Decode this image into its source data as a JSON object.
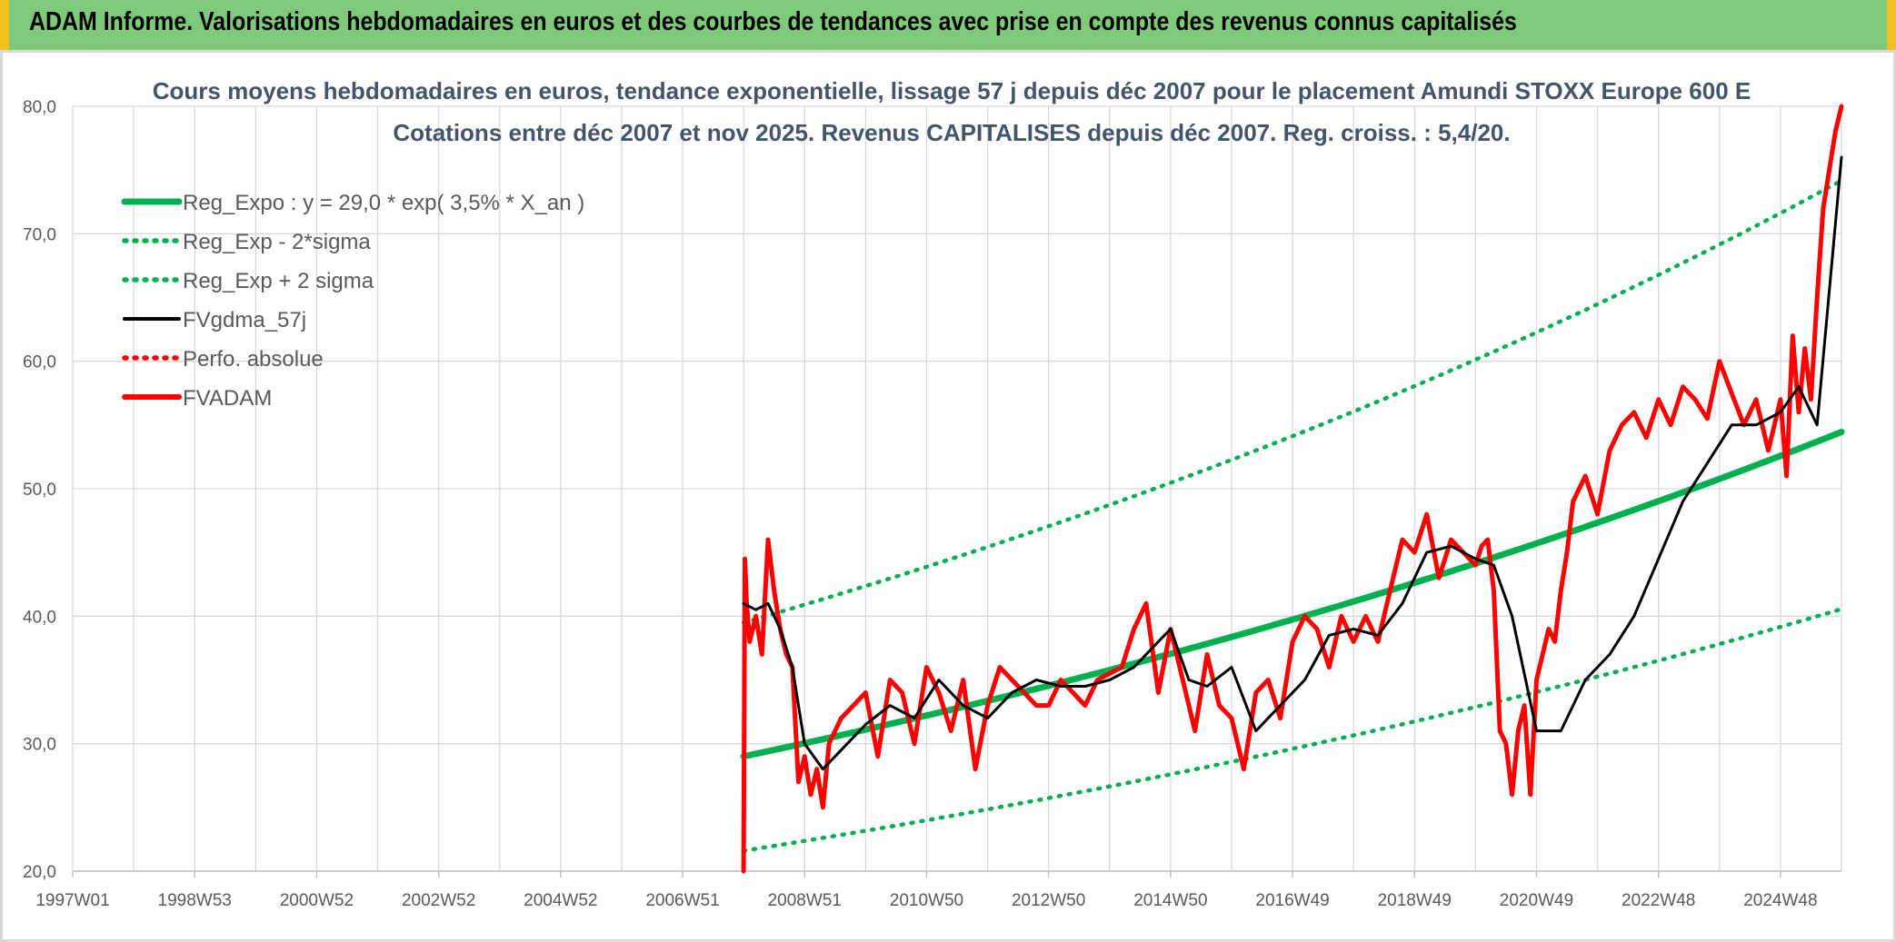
{
  "banner": {
    "title": "ADAM Informe. Valorisations hebdomadaires en euros et des courbes de tendances avec prise en compte des revenus connus capitalisés"
  },
  "chart_data": {
    "type": "line",
    "title": "Cours moyens hebdomadaires en euros, tendance exponentielle, lissage 57 j depuis déc 2007 pour le placement Amundi STOXX Europe 600 E",
    "subtitle": "Cotations entre déc 2007 et nov 2025. Revenus CAPITALISES depuis déc 2007. Reg. croiss. : 5,4/20.",
    "xlabel": "",
    "ylabel": "",
    "ylim": [
      20,
      80
    ],
    "y_ticks": [
      "20,0",
      "30,0",
      "40,0",
      "50,0",
      "60,0",
      "70,0",
      "80,0"
    ],
    "xlim": [
      1997.0,
      2026.0
    ],
    "x_ticks": [
      {
        "label": "1997W01",
        "year": 1997.0
      },
      {
        "label": "1998W53",
        "year": 1999.0
      },
      {
        "label": "2000W52",
        "year": 2001.0
      },
      {
        "label": "2002W52",
        "year": 2003.0
      },
      {
        "label": "2004W52",
        "year": 2005.0
      },
      {
        "label": "2006W51",
        "year": 2007.0
      },
      {
        "label": "2008W51",
        "year": 2009.0
      },
      {
        "label": "2010W50",
        "year": 2011.0
      },
      {
        "label": "2012W50",
        "year": 2013.0
      },
      {
        "label": "2014W50",
        "year": 2015.0
      },
      {
        "label": "2016W49",
        "year": 2017.0
      },
      {
        "label": "2018W49",
        "year": 2019.0
      },
      {
        "label": "2020W49",
        "year": 2021.0
      },
      {
        "label": "2022W48",
        "year": 2023.0
      },
      {
        "label": "2024W48",
        "year": 2025.0
      }
    ],
    "grid": true,
    "legend_position": "top-left",
    "series": [
      {
        "name": "Reg_Expo : y = 29,0 * exp( 3,5% *  X_an )",
        "color": "#00b050",
        "style": "solid-thick",
        "formula": {
          "a": 29.0,
          "rate": 0.035,
          "start": 2008.0,
          "end": 2026.0
        }
      },
      {
        "name": "Reg_Exp - 2*sigma",
        "color": "#00b050",
        "style": "dotted",
        "formula": {
          "a": 21.6,
          "rate": 0.035,
          "start": 2008.0,
          "end": 2026.0
        }
      },
      {
        "name": "Reg_Exp + 2 sigma",
        "color": "#00b050",
        "style": "dotted",
        "formula": {
          "a": 39.5,
          "rate": 0.035,
          "start": 2008.0,
          "end": 2026.0
        }
      },
      {
        "name": "FVgdma_57j",
        "color": "#000000",
        "style": "solid",
        "x": [
          2008.0,
          2008.2,
          2008.4,
          2008.6,
          2008.8,
          2009.0,
          2009.3,
          2009.6,
          2010.0,
          2010.4,
          2010.8,
          2011.2,
          2011.6,
          2012.0,
          2012.4,
          2012.8,
          2013.2,
          2013.6,
          2014.0,
          2014.4,
          2014.8,
          2015.0,
          2015.3,
          2015.6,
          2016.0,
          2016.4,
          2016.8,
          2017.2,
          2017.6,
          2018.0,
          2018.4,
          2018.8,
          2019.2,
          2019.6,
          2020.0,
          2020.3,
          2020.6,
          2021.0,
          2021.4,
          2021.8,
          2022.2,
          2022.6,
          2023.0,
          2023.4,
          2023.8,
          2024.2,
          2024.6,
          2025.0,
          2025.3,
          2025.6,
          2026.0
        ],
        "y": [
          41.0,
          40.5,
          41.0,
          39.0,
          36.0,
          30.0,
          28.0,
          29.5,
          31.5,
          33.0,
          32.0,
          35.0,
          33.0,
          32.0,
          34.0,
          35.0,
          34.5,
          34.5,
          35.0,
          36.0,
          38.0,
          39.0,
          35.0,
          34.5,
          36.0,
          31.0,
          33.0,
          35.0,
          38.5,
          39.0,
          38.5,
          41.0,
          45.0,
          45.5,
          44.5,
          44.0,
          40.0,
          31.0,
          31.0,
          35.0,
          37.0,
          40.0,
          44.5,
          49.0,
          52.0,
          55.0,
          55.0,
          56.0,
          58.0,
          55.0,
          76.0
        ]
      },
      {
        "name": "Perfo. absolue",
        "color": "#ff0000",
        "style": "dotted",
        "x": [],
        "y": []
      },
      {
        "name": "FVADAM",
        "color": "#ff0000",
        "style": "solid-thick",
        "x": [
          2008.0,
          2008.02,
          2008.05,
          2008.1,
          2008.2,
          2008.3,
          2008.4,
          2008.5,
          2008.6,
          2008.7,
          2008.8,
          2008.9,
          2009.0,
          2009.1,
          2009.2,
          2009.3,
          2009.4,
          2009.5,
          2009.6,
          2009.8,
          2010.0,
          2010.2,
          2010.4,
          2010.6,
          2010.8,
          2011.0,
          2011.2,
          2011.4,
          2011.6,
          2011.8,
          2012.0,
          2012.2,
          2012.4,
          2012.6,
          2012.8,
          2013.0,
          2013.2,
          2013.4,
          2013.6,
          2013.8,
          2014.0,
          2014.2,
          2014.4,
          2014.6,
          2014.8,
          2015.0,
          2015.2,
          2015.4,
          2015.6,
          2015.8,
          2016.0,
          2016.2,
          2016.4,
          2016.6,
          2016.8,
          2017.0,
          2017.2,
          2017.4,
          2017.6,
          2017.8,
          2018.0,
          2018.2,
          2018.4,
          2018.6,
          2018.8,
          2019.0,
          2019.2,
          2019.4,
          2019.6,
          2019.8,
          2020.0,
          2020.1,
          2020.2,
          2020.3,
          2020.4,
          2020.5,
          2020.6,
          2020.7,
          2020.8,
          2020.9,
          2021.0,
          2021.1,
          2021.2,
          2021.3,
          2021.4,
          2021.5,
          2021.6,
          2021.8,
          2022.0,
          2022.2,
          2022.4,
          2022.6,
          2022.8,
          2023.0,
          2023.2,
          2023.4,
          2023.6,
          2023.8,
          2024.0,
          2024.2,
          2024.4,
          2024.6,
          2024.8,
          2025.0,
          2025.1,
          2025.2,
          2025.3,
          2025.4,
          2025.5,
          2025.6,
          2025.7,
          2025.8,
          2025.9,
          2026.0
        ],
        "y": [
          20.0,
          44.5,
          41.0,
          38.0,
          40.0,
          37.0,
          46.0,
          42.0,
          39.0,
          37.0,
          36.0,
          27.0,
          29.0,
          26.0,
          28.0,
          25.0,
          30.0,
          31.0,
          32.0,
          33.0,
          34.0,
          29.0,
          35.0,
          34.0,
          30.0,
          36.0,
          34.0,
          31.0,
          35.0,
          28.0,
          33.0,
          36.0,
          35.0,
          34.0,
          33.0,
          33.0,
          35.0,
          34.0,
          33.0,
          35.0,
          35.5,
          36.0,
          39.0,
          41.0,
          34.0,
          39.0,
          35.0,
          31.0,
          37.0,
          33.0,
          32.0,
          28.0,
          34.0,
          35.0,
          32.0,
          38.0,
          40.0,
          39.0,
          36.0,
          40.0,
          38.0,
          40.0,
          38.0,
          42.0,
          46.0,
          45.0,
          48.0,
          43.0,
          46.0,
          45.0,
          44.0,
          45.5,
          46.0,
          42.0,
          31.0,
          30.0,
          26.0,
          31.0,
          33.0,
          26.0,
          35.0,
          37.0,
          39.0,
          38.0,
          42.0,
          45.0,
          49.0,
          51.0,
          48.0,
          53.0,
          55.0,
          56.0,
          54.0,
          57.0,
          55.0,
          58.0,
          57.0,
          55.5,
          60.0,
          57.5,
          55.0,
          57.0,
          53.0,
          57.0,
          51.0,
          62.0,
          56.0,
          61.0,
          57.0,
          65.0,
          72.0,
          75.0,
          78.0,
          80.0
        ]
      }
    ]
  }
}
